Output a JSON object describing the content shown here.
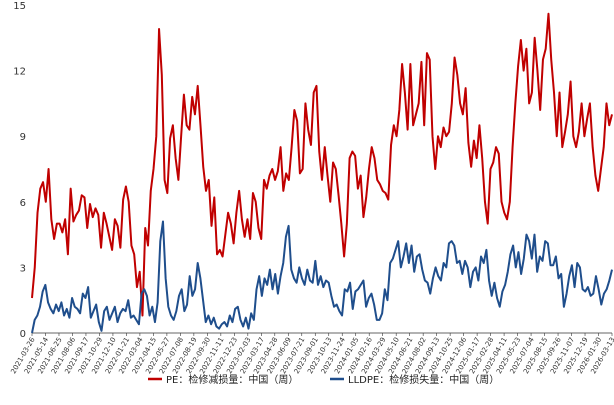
{
  "chart_data": {
    "type": "line",
    "title": "",
    "xlabel": "",
    "ylabel": "",
    "ylim": [
      0,
      15
    ],
    "yticks": [
      0,
      3,
      6,
      9,
      12,
      15
    ],
    "grid": false,
    "legend_position": "bottom-center",
    "x_tick_labels": [
      "2021-03-26",
      "2021-05-14",
      "2021-06-25",
      "2021-08-06",
      "2021-09-17",
      "2021-10-29",
      "2021-12-10",
      "2022-01-21",
      "2022-03-04",
      "2022-04-15",
      "2022-05-27",
      "2022-07-08",
      "2022-08-19",
      "2022-09-30",
      "2022-11-11",
      "2022-12-23",
      "2023-02-03",
      "2023-03-17",
      "2023-04-28",
      "2023-06-09",
      "2023-07-21",
      "2023-09-01",
      "2023-10-13",
      "2023-11-24",
      "2024-01-05",
      "2024-02-16",
      "2024-03-29",
      "2024-05-10",
      "2024-06-21",
      "2024-08-02",
      "2024-09-13",
      "2024-10-25",
      "2024-12-06",
      "2025-01-17",
      "2025-02-28",
      "2025-04-11",
      "2025-05-23",
      "2025-07-04",
      "2025-08-15",
      "2025-09-26",
      "2025-11-07",
      "2025-12-19",
      "2026-01-30",
      "2026-03-13"
    ],
    "series": [
      {
        "name": "PE：检修减损量：中国（周）",
        "color": "#c00000",
        "values": [
          1.6,
          3.0,
          5.5,
          6.6,
          6.9,
          6.0,
          7.5,
          5.2,
          4.3,
          5.0,
          5.0,
          4.6,
          5.2,
          3.6,
          6.6,
          5.1,
          5.4,
          5.6,
          6.3,
          6.2,
          4.8,
          5.9,
          5.3,
          5.7,
          5.4,
          3.9,
          5.5,
          5.0,
          4.4,
          3.8,
          5.2,
          4.9,
          3.9,
          6.1,
          6.7,
          6.0,
          4.0,
          3.6,
          2.1,
          2.8,
          0.8,
          4.8,
          4.0,
          6.5,
          7.5,
          9.0,
          13.9,
          11.8,
          7.0,
          6.4,
          8.9,
          9.5,
          8.0,
          7.0,
          9.0,
          10.9,
          9.5,
          9.3,
          10.8,
          10.0,
          11.3,
          9.5,
          7.6,
          6.5,
          7.0,
          4.9,
          6.2,
          3.6,
          3.8,
          3.5,
          4.5,
          5.5,
          5.0,
          4.1,
          5.5,
          6.5,
          5.2,
          4.4,
          5.2,
          4.3,
          6.4,
          6.0,
          4.8,
          4.3,
          7.0,
          6.6,
          7.2,
          7.5,
          7.0,
          7.4,
          8.5,
          6.5,
          7.3,
          7.0,
          8.5,
          10.2,
          9.7,
          7.3,
          7.5,
          10.5,
          9.3,
          8.6,
          11.0,
          11.3,
          8.3,
          7.0,
          8.5,
          7.2,
          6.0,
          7.8,
          7.5,
          6.3,
          5.0,
          3.5,
          5.0,
          8.0,
          8.3,
          8.1,
          6.6,
          7.2,
          5.3,
          6.2,
          7.5,
          8.5,
          8.0,
          7.0,
          6.8,
          6.5,
          6.4,
          6.1,
          8.6,
          9.5,
          9.0,
          10.2,
          12.3,
          11.0,
          9.3,
          12.3,
          9.5,
          10.0,
          10.5,
          12.4,
          9.5,
          12.8,
          12.5,
          9.0,
          7.5,
          9.0,
          8.5,
          9.4,
          9.0,
          9.2,
          10.5,
          12.6,
          11.8,
          10.5,
          10.0,
          11.2,
          8.7,
          7.6,
          8.8,
          8.0,
          9.5,
          8.0,
          6.0,
          5.0,
          7.5,
          7.8,
          8.5,
          8.2,
          6.0,
          5.5,
          5.2,
          6.0,
          8.5,
          10.5,
          12.2,
          13.4,
          12.0,
          13.0,
          10.5,
          11.0,
          13.5,
          12.0,
          10.2,
          12.5,
          13.0,
          14.6,
          12.5,
          11.0,
          9.0,
          11.0,
          8.5,
          9.2,
          10.0,
          11.5,
          9.0,
          8.5,
          9.2,
          10.5,
          9.0,
          9.8,
          10.5,
          8.5,
          7.2,
          6.5,
          7.5,
          8.5,
          10.5,
          9.5,
          10.0
        ]
      },
      {
        "name": "LLDPE：检修损失量：中国（周）",
        "color": "#1f4e8c",
        "values": [
          0.0,
          0.6,
          0.8,
          1.2,
          1.9,
          2.2,
          1.4,
          1.1,
          0.9,
          1.3,
          1.0,
          1.4,
          0.8,
          1.1,
          0.7,
          1.6,
          1.2,
          1.1,
          0.9,
          1.8,
          1.6,
          2.1,
          0.7,
          1.0,
          1.3,
          0.5,
          0.1,
          1.0,
          1.2,
          0.6,
          0.9,
          1.2,
          0.5,
          0.9,
          1.1,
          1.0,
          1.5,
          0.7,
          0.8,
          0.6,
          0.4,
          1.8,
          2.0,
          1.7,
          0.8,
          1.2,
          0.5,
          1.4,
          4.2,
          5.1,
          2.5,
          1.2,
          0.8,
          0.6,
          1.0,
          1.7,
          2.0,
          1.0,
          1.3,
          2.6,
          1.7,
          2.0,
          3.2,
          2.5,
          1.5,
          0.5,
          0.8,
          0.4,
          0.7,
          0.3,
          0.2,
          0.4,
          0.5,
          0.3,
          0.8,
          0.5,
          1.1,
          1.2,
          0.6,
          0.3,
          0.7,
          0.2,
          0.9,
          0.6,
          2.0,
          2.6,
          1.7,
          2.5,
          2.2,
          2.9,
          2.0,
          2.7,
          1.8,
          2.6,
          3.2,
          4.4,
          4.9,
          2.9,
          2.5,
          2.3,
          3.0,
          2.5,
          2.2,
          2.9,
          2.4,
          2.3,
          3.3,
          2.2,
          2.6,
          2.1,
          2.4,
          2.3,
          1.7,
          1.2,
          1.3,
          1.0,
          0.8,
          2.0,
          1.9,
          2.3,
          1.1,
          1.9,
          2.0,
          2.2,
          2.4,
          1.2,
          1.6,
          1.8,
          1.3,
          0.6,
          0.6,
          0.9,
          2.0,
          1.5,
          3.2,
          3.4,
          3.8,
          4.2,
          3.0,
          3.5,
          4.1,
          3.2,
          4.0,
          2.8,
          3.5,
          3.6,
          2.9,
          2.4,
          2.3,
          1.8,
          2.5,
          3.0,
          2.6,
          2.4,
          3.2,
          3.0,
          4.1,
          4.2,
          4.0,
          3.2,
          3.3,
          2.7,
          3.3,
          3.0,
          2.1,
          2.8,
          3.0,
          2.4,
          3.5,
          3.2,
          3.8,
          2.4,
          1.7,
          2.3,
          1.6,
          1.2,
          1.9,
          2.2,
          2.8,
          3.6,
          4.0,
          3.0,
          3.7,
          2.7,
          3.4,
          4.5,
          4.2,
          3.4,
          4.5,
          2.8,
          3.5,
          3.3,
          4.2,
          4.1,
          3.1,
          3.1,
          3.5,
          2.5,
          2.7,
          1.2,
          1.8,
          2.6,
          3.1,
          2.1,
          3.2,
          3.0,
          2.0,
          1.9,
          2.1,
          1.7,
          1.8,
          2.6,
          2.0,
          1.3,
          1.8,
          2.0,
          2.4,
          2.9
        ]
      }
    ]
  }
}
